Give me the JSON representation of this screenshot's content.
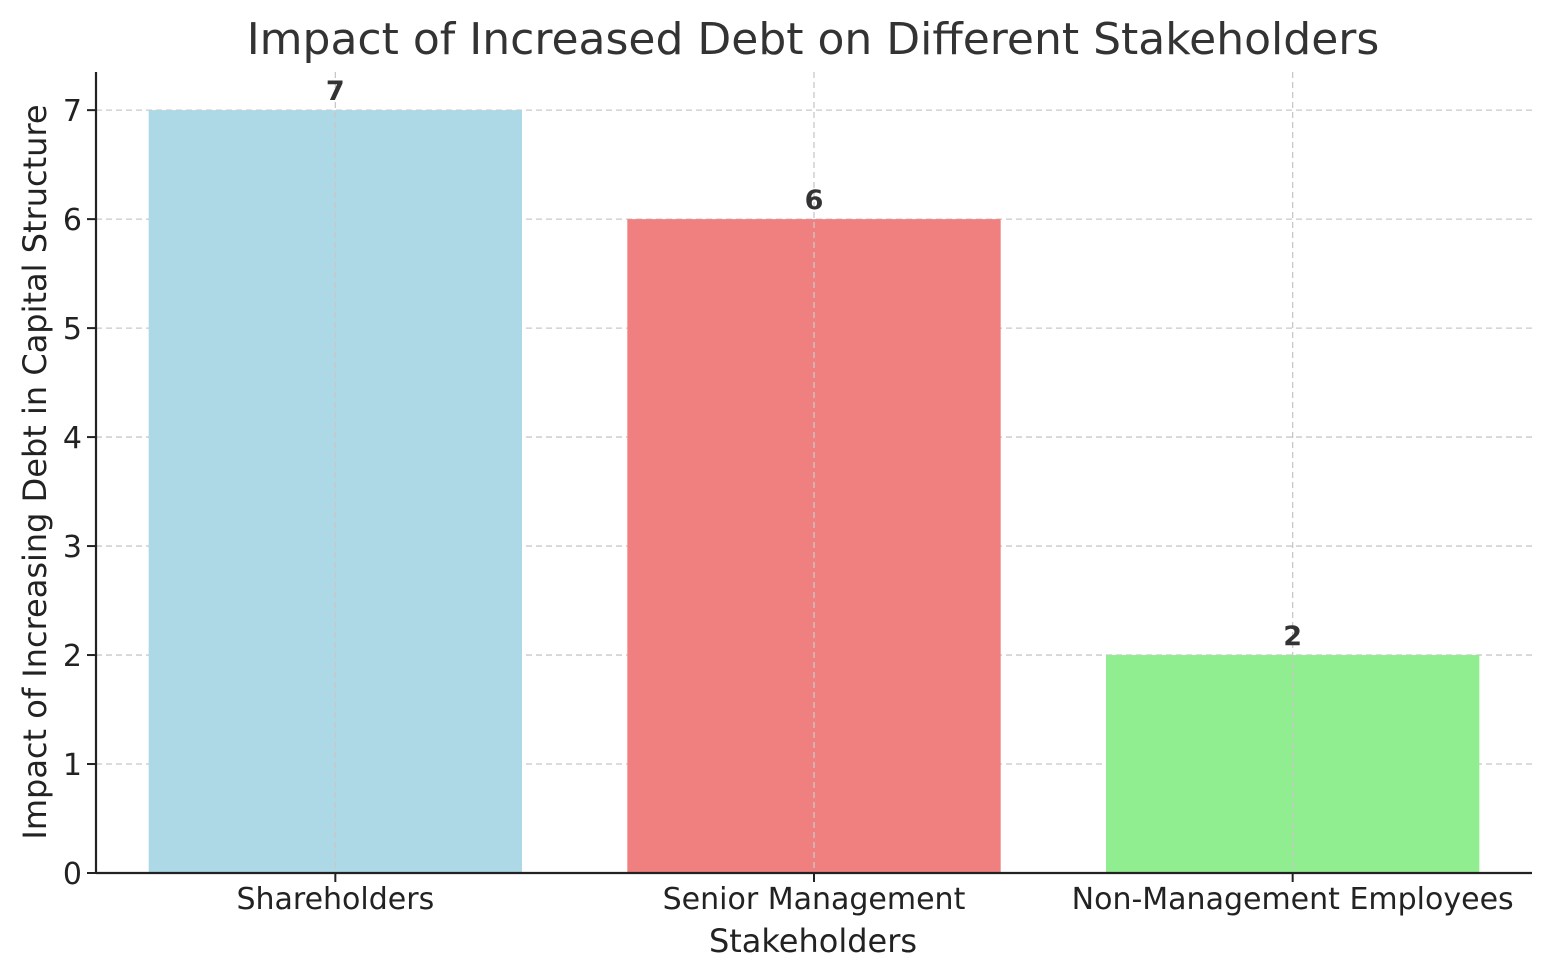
{
  "chart_data": {
    "type": "bar",
    "title": "Impact of Increased Debt on Different Stakeholders",
    "xlabel": "Stakeholders",
    "ylabel": "Impact of Increasing Debt in Capital Structure",
    "categories": [
      "Shareholders",
      "Senior Management",
      "Non-Management Employees"
    ],
    "values": [
      7,
      6,
      2
    ],
    "colors": [
      "#add8e6",
      "#f08080",
      "#90ee90"
    ],
    "ylim": [
      0,
      7.35
    ],
    "yticks": [
      0,
      1,
      2,
      3,
      4,
      5,
      6,
      7
    ],
    "grid": true,
    "data_labels": true
  }
}
